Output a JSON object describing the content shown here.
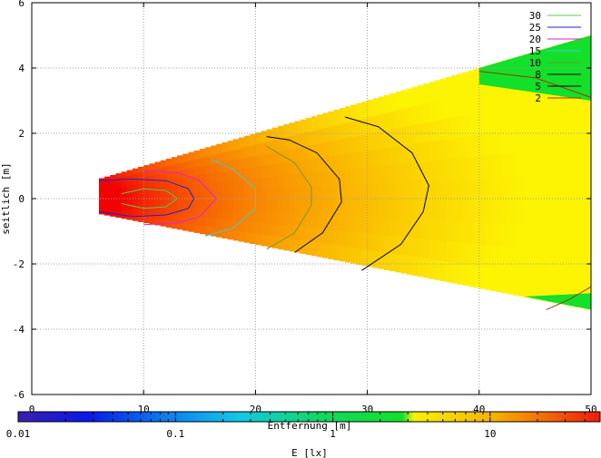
{
  "chart_data": {
    "type": "heatmap",
    "title": "",
    "xlabel": "Entfernung [m]",
    "ylabel": "seitlich [m]",
    "xlim": [
      0,
      50
    ],
    "ylim": [
      -6,
      6
    ],
    "x_ticks": [
      0,
      10,
      20,
      30,
      40,
      50
    ],
    "y_ticks": [
      -6,
      -4,
      -2,
      0,
      2,
      4,
      6
    ],
    "x_tick_labels": [
      "0",
      "10",
      "20",
      "30",
      "40",
      "50"
    ],
    "y_tick_labels": [
      "-6",
      "-4",
      "-2",
      "0",
      "2",
      "4",
      "6"
    ],
    "grid": true,
    "colorbar": {
      "label": "E [lx]",
      "scale": "log",
      "range": [
        0.01,
        50
      ],
      "tick_labels": [
        "0.01",
        "0.1",
        "1",
        "10"
      ],
      "tick_values": [
        0.01,
        0.1,
        1,
        10
      ]
    },
    "field": {
      "x_start": 6,
      "x_end": 50,
      "y_top_at_start": 0.6,
      "y_top_at_end": 5,
      "y_bottom_at_start": -0.45,
      "y_bottom_at_end": -3.4,
      "center_y": 0,
      "peak_value_lx": 40
    },
    "contour_levels": [
      30,
      25,
      20,
      15,
      10,
      8,
      5,
      2
    ],
    "legend": {
      "placement": "top-right",
      "entries": [
        {
          "label": "30",
          "color": "#55cc55"
        },
        {
          "label": "25",
          "color": "#2222cc"
        },
        {
          "label": "20",
          "color": "#dd22dd"
        },
        {
          "label": "15",
          "color": "#44cccc"
        },
        {
          "label": "10",
          "color": "#779922"
        },
        {
          "label": "8",
          "color": "#000000"
        },
        {
          "label": "5",
          "color": "#000000"
        },
        {
          "label": "2",
          "color": "#aa3300"
        }
      ]
    },
    "contours": [
      {
        "level": 30,
        "color": "#55cc55",
        "points": [
          [
            8,
            -0.15
          ],
          [
            10,
            -0.3
          ],
          [
            12,
            -0.25
          ],
          [
            13,
            0
          ],
          [
            12,
            0.25
          ],
          [
            10,
            0.3
          ],
          [
            8,
            0.15
          ]
        ]
      },
      {
        "level": 25,
        "color": "#2222cc",
        "points": [
          [
            6,
            -0.4
          ],
          [
            9,
            -0.55
          ],
          [
            12,
            -0.5
          ],
          [
            14,
            -0.3
          ],
          [
            14.5,
            0
          ],
          [
            14,
            0.3
          ],
          [
            12,
            0.55
          ],
          [
            9,
            0.6
          ],
          [
            6,
            0.55
          ]
        ]
      },
      {
        "level": 20,
        "color": "#dd22dd",
        "points": [
          [
            10,
            -0.8
          ],
          [
            13,
            -0.75
          ],
          [
            15,
            -0.55
          ],
          [
            16.5,
            0
          ],
          [
            15,
            0.55
          ],
          [
            13,
            0.8
          ],
          [
            10,
            0.85
          ]
        ]
      },
      {
        "level": 15,
        "color": "#44cccc",
        "points": [
          [
            15.5,
            -1.15
          ],
          [
            18,
            -0.9
          ],
          [
            20,
            -0.3
          ],
          [
            20,
            0.3
          ],
          [
            18,
            0.9
          ],
          [
            16,
            1.2
          ]
        ]
      },
      {
        "level": 10,
        "color": "#779922",
        "points": [
          [
            21,
            -1.55
          ],
          [
            23.5,
            -1.05
          ],
          [
            25,
            -0.2
          ],
          [
            25,
            0.35
          ],
          [
            23.5,
            1.1
          ],
          [
            21,
            1.6
          ]
        ]
      },
      {
        "level": 8,
        "color": "#000000",
        "points": [
          [
            23.5,
            -1.65
          ],
          [
            26,
            -1.05
          ],
          [
            27.7,
            -0.1
          ],
          [
            27.5,
            0.6
          ],
          [
            25.5,
            1.4
          ],
          [
            23,
            1.8
          ],
          [
            21,
            1.9
          ]
        ]
      },
      {
        "level": 5,
        "color": "#000000",
        "points": [
          [
            29.5,
            -2.2
          ],
          [
            33,
            -1.4
          ],
          [
            35,
            -0.4
          ],
          [
            35.5,
            0.4
          ],
          [
            34,
            1.4
          ],
          [
            31,
            2.2
          ],
          [
            28,
            2.5
          ]
        ]
      },
      {
        "level": 2,
        "color": "#aa3300",
        "points": [
          [
            40,
            3.9
          ],
          [
            45,
            3.7
          ],
          [
            50,
            3.1
          ]
        ]
      },
      {
        "level": 2,
        "color": "#aa3300",
        "points": [
          [
            46,
            -3.4
          ],
          [
            48,
            -3.1
          ],
          [
            50,
            -2.7
          ]
        ]
      }
    ],
    "green_regions": [
      {
        "x_start": 40,
        "x_end": 50,
        "side": "top",
        "y_low_at_start": 3.5,
        "y_low_at_end": 3.0
      },
      {
        "x_start": 44,
        "x_end": 50,
        "side": "bottom",
        "y_high_at_start": -3.0,
        "y_high_at_end": -2.9
      }
    ]
  }
}
